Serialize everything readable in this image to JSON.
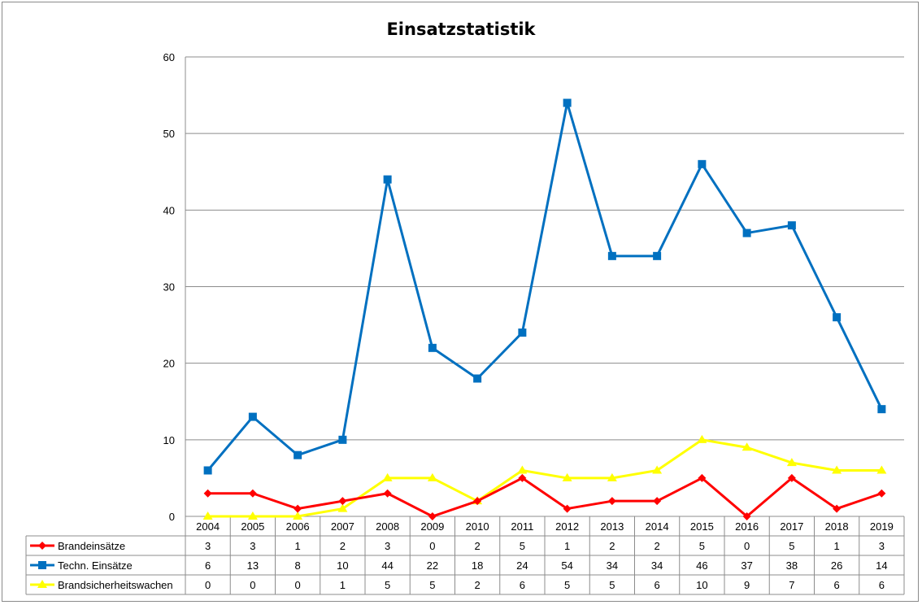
{
  "chart_data": {
    "type": "line",
    "title": "Einsatzstatistik",
    "xlabel": "",
    "ylabel": "",
    "ylim": [
      0,
      60
    ],
    "yticks": [
      0,
      10,
      20,
      30,
      40,
      50,
      60
    ],
    "grid": true,
    "legend_placement": "bottom-table",
    "categories": [
      "2004",
      "2005",
      "2006",
      "2007",
      "2008",
      "2009",
      "2010",
      "2011",
      "2012",
      "2013",
      "2014",
      "2015",
      "2016",
      "2017",
      "2018",
      "2019"
    ],
    "series": [
      {
        "name": "Brandeinsätze",
        "color": "#ff0000",
        "marker": "diamond",
        "values": [
          3,
          3,
          1,
          2,
          3,
          0,
          2,
          5,
          1,
          2,
          2,
          5,
          0,
          5,
          1,
          3
        ]
      },
      {
        "name": "Techn. Einsätze",
        "color": "#0070c0",
        "marker": "square",
        "values": [
          6,
          13,
          8,
          10,
          44,
          22,
          18,
          24,
          54,
          34,
          34,
          46,
          37,
          38,
          26,
          14
        ]
      },
      {
        "name": "Brandsicherheitswachen",
        "color": "#ffff00",
        "marker": "triangle",
        "values": [
          0,
          0,
          0,
          1,
          5,
          5,
          2,
          6,
          5,
          5,
          6,
          10,
          9,
          7,
          6,
          6
        ]
      }
    ]
  }
}
